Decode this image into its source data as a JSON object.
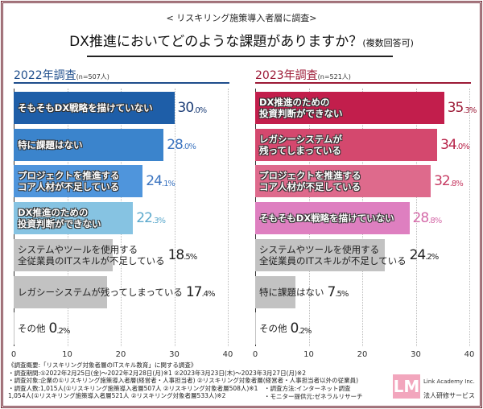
{
  "header": {
    "subtitle": "< リスキリング施策導入者層に調査>",
    "title": "DX推進においてどのような課題がありますか？",
    "title_note": "(複数回答可)"
  },
  "chart_data": [
    {
      "type": "bar",
      "orientation": "horizontal",
      "title": "2022年調査",
      "n": "(n=507人)",
      "title_color": "#1f4e8c",
      "xlim": [
        0,
        40
      ],
      "ticks": [
        "0",
        "10",
        "20",
        "30",
        "40"
      ],
      "grid": true,
      "categories": [
        "そもそもDX戦略を描けていない",
        "特に課題はない",
        "プロジェクトを推進する\nコア人材が不足している",
        "DX推進のための\n投資判断ができない",
        "システムやツールを使用する\n全従業員のITスキルが不足している",
        "レガシーシステムが残ってしまっている",
        "その他"
      ],
      "values": [
        30.0,
        28.0,
        24.1,
        22.3,
        18.5,
        17.4,
        0.2
      ],
      "colors": [
        "#1e5ea8",
        "#3b84cc",
        "#4f95dc",
        "#86c3e2",
        "#c2c2c2",
        "#c2c2c2",
        "#c2c2c2"
      ],
      "value_colors": [
        "#1e3f78",
        "#3b74c0",
        "#3b74c0",
        "#5aa8cc",
        "#222222",
        "#222222",
        "#222222"
      ]
    },
    {
      "type": "bar",
      "orientation": "horizontal",
      "title": "2023年調査",
      "n": "(n=521人)",
      "title_color": "#9c1a36",
      "xlim": [
        0,
        40
      ],
      "ticks": [
        "0",
        "10",
        "20",
        "30",
        "40"
      ],
      "grid": true,
      "categories": [
        "DX推進のための\n投資判断ができない",
        "レガシーシステムが\n残ってしまっている",
        "プロジェクトを推進する\nコア人材が不足している",
        "そもそもDX戦略を描けていない",
        "システムやツールを使用する\n全従業員のITスキルが不足している",
        "特に課題はない",
        "その他"
      ],
      "values": [
        35.3,
        34.0,
        32.8,
        28.8,
        24.2,
        7.5,
        0.2
      ],
      "colors": [
        "#c21e4c",
        "#d4486e",
        "#de6a8c",
        "#de7fc0",
        "#c2c2c2",
        "#c2c2c2",
        "#c2c2c2"
      ],
      "value_colors": [
        "#9c1a36",
        "#b8244a",
        "#c63a62",
        "#d46aa8",
        "#222222",
        "#222222",
        "#222222"
      ]
    }
  ],
  "footer": {
    "lines": [
      "《調査概要:「リスキリング対象者層のITスキル教育」に関する調査》",
      "・調査期間:①2022年2月25日(金)～2022年2月28日(月)※1 ②2023年3月23日(木)～2023年3月27日(月)※2",
      "・調査対象:企業の①リスキリング施策導入者層(経営者・人事担当者) ②リスキリング対象者層(経営者・人事担当者以外の従業員)",
      "・調査人数:1,015人(①リスキリング施策導入者層507人 ②リスキリング対象者層508人)※1",
      "  1,054人(①リスキリング施策導入者層521人 ②リスキリング対象者層533人)※2"
    ],
    "method": "・調査方法:インターネット調査",
    "monitor": "・モニター提供元:ゼネラルリサーチ"
  },
  "logo": {
    "mark": "LM",
    "name": "Link Academy Inc.",
    "service": "法人研修サービス"
  }
}
